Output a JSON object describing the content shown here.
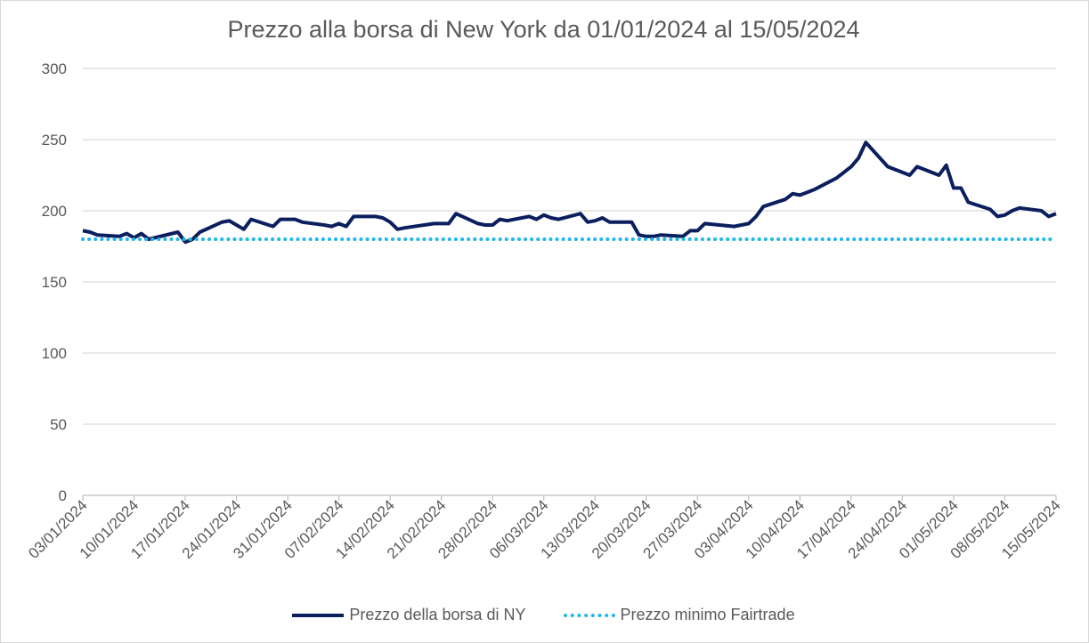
{
  "chart_data": {
    "type": "line",
    "title": "Prezzo alla borsa di New York da 01/01/2024 al 15/05/2024",
    "xlabel": "",
    "ylabel": "",
    "ylim": [
      0,
      300
    ],
    "yticks": [
      0,
      50,
      100,
      150,
      200,
      250,
      300
    ],
    "xlim": [
      "2024-01-03",
      "2024-05-15"
    ],
    "xtick_labels": [
      "03/01/2024",
      "10/01/2024",
      "17/01/2024",
      "24/01/2024",
      "31/01/2024",
      "07/02/2024",
      "14/02/2024",
      "21/02/2024",
      "28/02/2024",
      "06/03/2024",
      "13/03/2024",
      "20/03/2024",
      "27/03/2024",
      "03/04/2024",
      "10/04/2024",
      "17/04/2024",
      "24/04/2024",
      "01/05/2024",
      "08/05/2024",
      "15/05/2024"
    ],
    "grid": "horizontal",
    "legend_position": "bottom",
    "series": [
      {
        "name": "Prezzo della borsa di NY",
        "color": "#0b1f5e",
        "style": "solid",
        "x": [
          "2024-01-03",
          "2024-01-04",
          "2024-01-05",
          "2024-01-08",
          "2024-01-09",
          "2024-01-10",
          "2024-01-11",
          "2024-01-12",
          "2024-01-16",
          "2024-01-17",
          "2024-01-18",
          "2024-01-19",
          "2024-01-22",
          "2024-01-23",
          "2024-01-24",
          "2024-01-25",
          "2024-01-26",
          "2024-01-29",
          "2024-01-30",
          "2024-01-31",
          "2024-02-01",
          "2024-02-02",
          "2024-02-05",
          "2024-02-06",
          "2024-02-07",
          "2024-02-08",
          "2024-02-09",
          "2024-02-12",
          "2024-02-13",
          "2024-02-14",
          "2024-02-15",
          "2024-02-16",
          "2024-02-20",
          "2024-02-21",
          "2024-02-22",
          "2024-02-23",
          "2024-02-26",
          "2024-02-27",
          "2024-02-28",
          "2024-02-29",
          "2024-03-01",
          "2024-03-04",
          "2024-03-05",
          "2024-03-06",
          "2024-03-07",
          "2024-03-08",
          "2024-03-11",
          "2024-03-12",
          "2024-03-13",
          "2024-03-14",
          "2024-03-15",
          "2024-03-18",
          "2024-03-19",
          "2024-03-20",
          "2024-03-21",
          "2024-03-22",
          "2024-03-25",
          "2024-03-26",
          "2024-03-27",
          "2024-03-28",
          "2024-04-01",
          "2024-04-02",
          "2024-04-03",
          "2024-04-04",
          "2024-04-05",
          "2024-04-08",
          "2024-04-09",
          "2024-04-10",
          "2024-04-11",
          "2024-04-12",
          "2024-04-15",
          "2024-04-16",
          "2024-04-17",
          "2024-04-18",
          "2024-04-19",
          "2024-04-22",
          "2024-04-23",
          "2024-04-24",
          "2024-04-25",
          "2024-04-26",
          "2024-04-29",
          "2024-04-30",
          "2024-05-01",
          "2024-05-02",
          "2024-05-03",
          "2024-05-06",
          "2024-05-07",
          "2024-05-08",
          "2024-05-09",
          "2024-05-10",
          "2024-05-13",
          "2024-05-14",
          "2024-05-15"
        ],
        "values": [
          186,
          185,
          183,
          182,
          184,
          181,
          184,
          180,
          185,
          178,
          180,
          185,
          192,
          193,
          190,
          187,
          194,
          189,
          194,
          194,
          194,
          192,
          190,
          189,
          191,
          189,
          196,
          196,
          195,
          192,
          187,
          188,
          191,
          191,
          191,
          198,
          191,
          190,
          190,
          194,
          193,
          196,
          194,
          197,
          195,
          194,
          198,
          192,
          193,
          195,
          192,
          192,
          183,
          182,
          182,
          183,
          182,
          186,
          186,
          191,
          189,
          190,
          191,
          196,
          203,
          208,
          212,
          211,
          213,
          215,
          223,
          227,
          231,
          237,
          248,
          231,
          229,
          227,
          225,
          231,
          225,
          232,
          216,
          216,
          206,
          201,
          196,
          197,
          200,
          202,
          200,
          196,
          198
        ]
      },
      {
        "name": "Prezzo minimo Fairtrade",
        "color": "#1fb6e8",
        "style": "dotted",
        "x": [
          "2024-01-03",
          "2024-05-15"
        ],
        "values": [
          180,
          180
        ]
      }
    ]
  }
}
